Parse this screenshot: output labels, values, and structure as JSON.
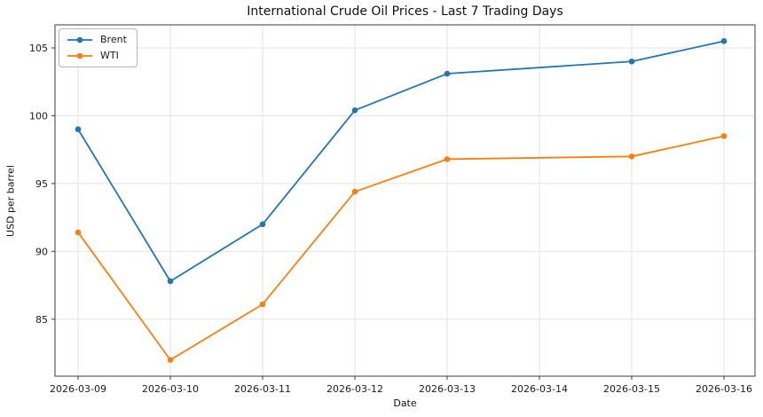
{
  "chart_data": {
    "type": "line",
    "title": "International Crude Oil Prices - Last 7 Trading Days",
    "xlabel": "Date",
    "ylabel": "USD per barrel",
    "x_ticks": [
      "2026-03-09",
      "2026-03-10",
      "2026-03-11",
      "2026-03-12",
      "2026-03-13",
      "2026-03-14",
      "2026-03-15",
      "2026-03-16"
    ],
    "y_ticks": [
      85,
      90,
      95,
      100,
      105
    ],
    "ylim": [
      80.8,
      106.7
    ],
    "grid": true,
    "legend_position": "upper left",
    "x": [
      "2026-03-09",
      "2026-03-10",
      "2026-03-11",
      "2026-03-12",
      "2026-03-13",
      "2026-03-15",
      "2026-03-16"
    ],
    "series": [
      {
        "name": "Brent",
        "color": "#1f77b4",
        "values": [
          99.0,
          87.8,
          92.0,
          100.4,
          103.1,
          104.0,
          105.5
        ]
      },
      {
        "name": "WTI",
        "color": "#ff7f0e",
        "values": [
          91.4,
          82.0,
          86.1,
          94.4,
          96.8,
          97.0,
          98.5
        ]
      }
    ]
  }
}
